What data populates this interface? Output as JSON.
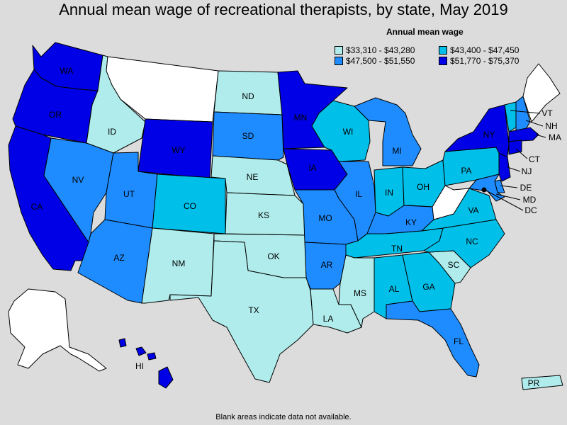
{
  "title": "Annual mean wage of recreational therapists, by state, May 2019",
  "legend": {
    "title": "Annual mean wage",
    "bins": [
      {
        "label": "$33,310 - $43,280",
        "color": "#b0ecec"
      },
      {
        "label": "$43,400 - $47,450",
        "color": "#00c0ea"
      },
      {
        "label": "$47,500 - $51,550",
        "color": "#1e8cff"
      },
      {
        "label": "$51,770 - $75,370",
        "color": "#0000e6"
      }
    ]
  },
  "no_data_color": "#ffffff",
  "footnote": "Blank areas indicate data not available.",
  "states": [
    {
      "code": "WA",
      "bin": 3
    },
    {
      "code": "OR",
      "bin": 3
    },
    {
      "code": "CA",
      "bin": 3
    },
    {
      "code": "ID",
      "bin": 0
    },
    {
      "code": "NV",
      "bin": 2
    },
    {
      "code": "MT",
      "bin": null
    },
    {
      "code": "WY",
      "bin": 3
    },
    {
      "code": "UT",
      "bin": 2
    },
    {
      "code": "AZ",
      "bin": 2
    },
    {
      "code": "CO",
      "bin": 1
    },
    {
      "code": "NM",
      "bin": 0
    },
    {
      "code": "ND",
      "bin": 0
    },
    {
      "code": "SD",
      "bin": 2
    },
    {
      "code": "NE",
      "bin": 0
    },
    {
      "code": "KS",
      "bin": 0
    },
    {
      "code": "OK",
      "bin": 0
    },
    {
      "code": "TX",
      "bin": 0
    },
    {
      "code": "MN",
      "bin": 3
    },
    {
      "code": "IA",
      "bin": 3
    },
    {
      "code": "MO",
      "bin": 2
    },
    {
      "code": "AR",
      "bin": 2
    },
    {
      "code": "LA",
      "bin": 0
    },
    {
      "code": "WI",
      "bin": 1
    },
    {
      "code": "IL",
      "bin": 2
    },
    {
      "code": "MI",
      "bin": 2
    },
    {
      "code": "IN",
      "bin": 1
    },
    {
      "code": "OH",
      "bin": 1
    },
    {
      "code": "KY",
      "bin": 2
    },
    {
      "code": "TN",
      "bin": 1
    },
    {
      "code": "MS",
      "bin": 0
    },
    {
      "code": "AL",
      "bin": 1
    },
    {
      "code": "GA",
      "bin": 1
    },
    {
      "code": "FL",
      "bin": 2
    },
    {
      "code": "SC",
      "bin": 0
    },
    {
      "code": "NC",
      "bin": 1
    },
    {
      "code": "VA",
      "bin": 1
    },
    {
      "code": "WV",
      "bin": null
    },
    {
      "code": "PA",
      "bin": 1
    },
    {
      "code": "NY",
      "bin": 3
    },
    {
      "code": "VT",
      "bin": 1
    },
    {
      "code": "NH",
      "bin": 2
    },
    {
      "code": "ME",
      "bin": null
    },
    {
      "code": "MA",
      "bin": 3
    },
    {
      "code": "CT",
      "bin": 3
    },
    {
      "code": "NJ",
      "bin": 3
    },
    {
      "code": "DE",
      "bin": 2
    },
    {
      "code": "MD",
      "bin": 2
    },
    {
      "code": "DC",
      "bin": 2
    },
    {
      "code": "AK",
      "bin": null
    },
    {
      "code": "HI",
      "bin": 3
    },
    {
      "code": "PR",
      "bin": 0
    }
  ]
}
